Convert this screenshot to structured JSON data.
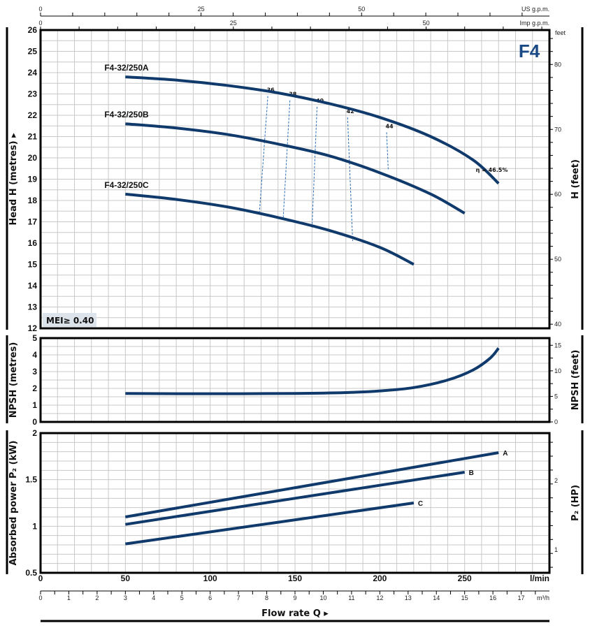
{
  "chart_data": [
    {
      "type": "line",
      "panel": "head",
      "title": "F4",
      "ylabel": "Head H (metres)",
      "ylabel_right": "H (feet)",
      "right_unit": "feet",
      "xlabel": "Flow rate Q",
      "xlim": [
        0,
        300
      ],
      "ylim": [
        12,
        26
      ],
      "yticks": [
        12,
        13,
        14,
        15,
        16,
        17,
        18,
        19,
        20,
        21,
        22,
        23,
        24,
        25,
        26
      ],
      "yticks_right": [
        40,
        50,
        60,
        70,
        80
      ],
      "badge": "MEI≥ 0.40",
      "series": [
        {
          "name": "F4-32/250A",
          "x": [
            50,
            80,
            110,
            140,
            170,
            200,
            230,
            255,
            270
          ],
          "y": [
            23.8,
            23.65,
            23.4,
            23.05,
            22.55,
            21.9,
            21.0,
            19.9,
            18.8
          ]
        },
        {
          "name": "F4-32/250B",
          "x": [
            50,
            80,
            110,
            140,
            170,
            200,
            230,
            250
          ],
          "y": [
            21.6,
            21.4,
            21.1,
            20.65,
            20.1,
            19.3,
            18.3,
            17.4
          ]
        },
        {
          "name": "F4-32/250C",
          "x": [
            50,
            80,
            110,
            140,
            170,
            200,
            220
          ],
          "y": [
            18.3,
            18.05,
            17.7,
            17.2,
            16.6,
            15.8,
            15.0
          ]
        }
      ],
      "efficiency_lines": [
        {
          "label": "36",
          "x_top": 134,
          "y_top": 22.9,
          "x_bottom": 129,
          "y_bottom": 17.4
        },
        {
          "label": "38",
          "x_top": 147,
          "y_top": 22.7,
          "x_bottom": 143,
          "y_bottom": 17.1
        },
        {
          "label": "40",
          "x_top": 163,
          "y_top": 22.4,
          "x_bottom": 160,
          "y_bottom": 16.7
        },
        {
          "label": "42",
          "x_top": 181,
          "y_top": 21.9,
          "x_bottom": 184,
          "y_bottom": 16.1
        },
        {
          "label": "44",
          "x_top": 204,
          "y_top": 21.2,
          "x_bottom": 205,
          "y_bottom": 19.4
        }
      ],
      "efficiency_annotation": "η = 46.5%"
    },
    {
      "type": "line",
      "panel": "npsh",
      "ylabel": "NPSH (metres)",
      "ylabel_right": "NPSH (feet)",
      "ylim": [
        0,
        5
      ],
      "yticks": [
        0,
        1,
        2,
        3,
        4,
        5
      ],
      "yticks_right": [
        0,
        5,
        10,
        15
      ],
      "series": [
        {
          "name": "NPSH",
          "x": [
            50,
            100,
            150,
            180,
            200,
            220,
            240,
            255,
            265,
            270
          ],
          "y": [
            1.7,
            1.68,
            1.7,
            1.75,
            1.85,
            2.05,
            2.5,
            3.1,
            3.8,
            4.4
          ]
        }
      ]
    },
    {
      "type": "line",
      "panel": "power",
      "ylabel": "Absorbed power P₂ (kW)",
      "ylabel_right": "P₂ (HP)",
      "ylim": [
        0.5,
        2
      ],
      "yticks": [
        0.5,
        1,
        1.5,
        2
      ],
      "yticks_right": [
        1,
        2
      ],
      "series": [
        {
          "name": "A",
          "x": [
            50,
            270
          ],
          "y": [
            1.1,
            1.79
          ]
        },
        {
          "name": "B",
          "x": [
            50,
            250
          ],
          "y": [
            1.02,
            1.58
          ]
        },
        {
          "name": "C",
          "x": [
            50,
            220
          ],
          "y": [
            0.81,
            1.25
          ]
        }
      ]
    }
  ],
  "axes": {
    "x_lmin": {
      "unit": "l/min",
      "ticks": [
        0,
        50,
        100,
        150,
        200,
        250
      ]
    },
    "x_m3h": {
      "unit": "m³/h",
      "ticks": [
        0,
        1,
        2,
        3,
        4,
        5,
        6,
        7,
        8,
        9,
        10,
        11,
        12,
        13,
        14,
        15,
        16,
        17
      ]
    },
    "x_us_gpm": {
      "unit": "US g.p.m.",
      "ticks": [
        0,
        25,
        50
      ]
    },
    "x_imp_gpm": {
      "unit": "Imp g.p.m.",
      "ticks": [
        0,
        25,
        50
      ]
    }
  },
  "colors": {
    "curve": "#0f3a6b",
    "grid": "#c8c8c8",
    "axis": "#000000",
    "title": "#1a4a85",
    "badge_bg": "#dde3ea",
    "eff_line": "#2a6db5"
  }
}
